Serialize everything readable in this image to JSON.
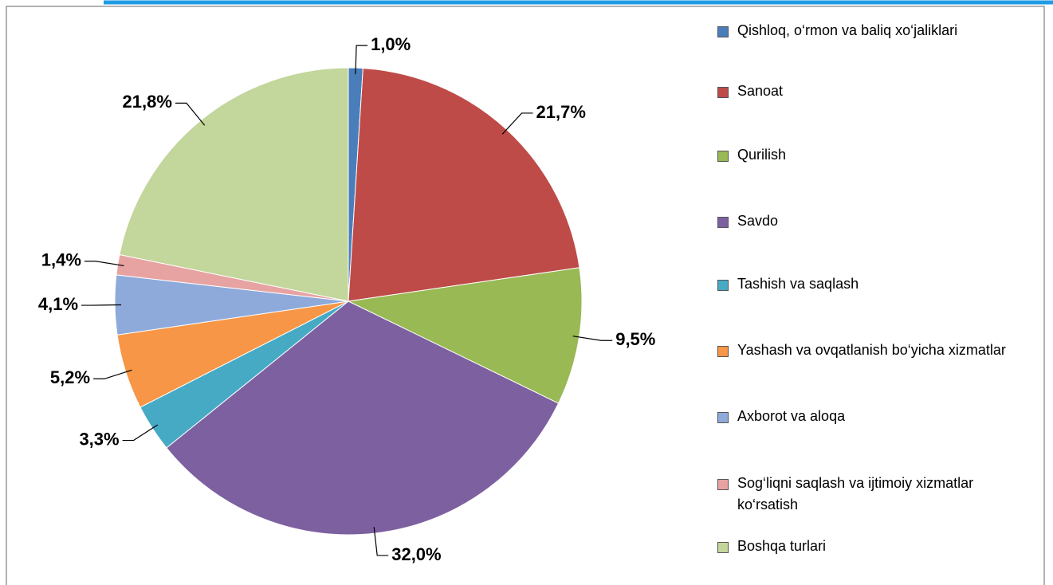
{
  "chart_data": {
    "type": "pie",
    "categories": [
      "Qishloq, o‘rmon va baliq xo‘jaliklari",
      "Sanoat",
      "Qurilish",
      "Savdo",
      "Tashish va saqlash",
      "Yashash va ovqatlanish bo‘yicha xizmatlar",
      "Axborot va aloqa",
      "Sog‘liqni saqlash va ijtimoiy xizmatlar ko‘rsatish",
      "Boshqa turlari"
    ],
    "values": [
      1.0,
      21.7,
      9.5,
      32.0,
      3.3,
      5.2,
      4.1,
      1.4,
      21.8
    ],
    "value_labels": [
      "1,0%",
      "21,7%",
      "9,5%",
      "32,0%",
      "3,3%",
      "5,2%",
      "4,1%",
      "1,4%",
      "21,8%"
    ],
    "colors": [
      "#4a7ebb",
      "#be4b48",
      "#98b954",
      "#7d60a0",
      "#46aac5",
      "#f79646",
      "#8eaadb",
      "#e6a3a1",
      "#c3d69b"
    ],
    "legend": "right"
  }
}
